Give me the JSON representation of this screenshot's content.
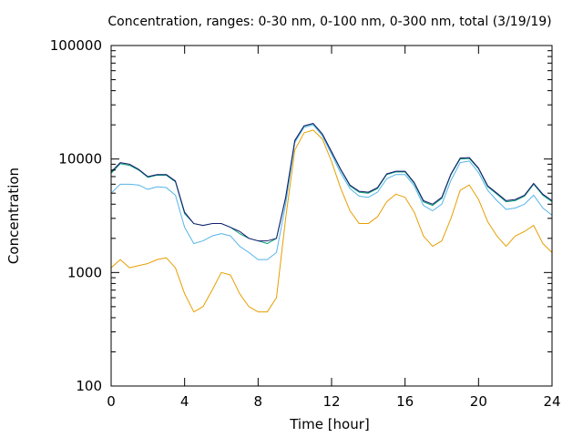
{
  "chart_data": {
    "type": "line",
    "title": "Concentration, ranges: 0-30 nm, 0-100 nm, 0-300 nm, total (3/19/19)",
    "xlabel": "Time [hour]",
    "ylabel": "Concentration",
    "xlim": [
      0,
      24
    ],
    "ylim": [
      100,
      100000
    ],
    "yscale": "log",
    "grid": false,
    "legend": "none",
    "x_ticks": [
      0,
      4,
      8,
      12,
      16,
      20,
      24
    ],
    "y_ticks": [
      100,
      1000,
      10000,
      100000
    ],
    "y_tick_labels": [
      "100",
      "1000",
      "10000",
      "100000"
    ],
    "x": [
      0,
      0.5,
      1,
      1.5,
      2,
      2.5,
      3,
      3.5,
      4,
      4.5,
      5,
      5.5,
      6,
      6.5,
      7,
      7.5,
      8,
      8.5,
      9,
      9.5,
      10,
      10.5,
      11,
      11.5,
      12,
      12.5,
      13,
      13.5,
      14,
      14.5,
      15,
      15.5,
      16,
      16.5,
      17,
      17.5,
      18,
      18.5,
      19,
      19.5,
      20,
      20.5,
      21,
      21.5,
      22,
      22.5,
      23,
      23.5,
      24
    ],
    "series": [
      {
        "color": "#e69f00",
        "values": [
          1100,
          1300,
          1100,
          1150,
          1200,
          1300,
          1350,
          1100,
          650,
          450,
          500,
          700,
          1000,
          950,
          650,
          500,
          450,
          450,
          600,
          3000,
          12000,
          17000,
          18000,
          15000,
          9500,
          5500,
          3500,
          2700,
          2700,
          3100,
          4200,
          4900,
          4600,
          3400,
          2100,
          1700,
          1900,
          3000,
          5300,
          5900,
          4400,
          2800,
          2100,
          1700,
          2100,
          2300,
          2600,
          1800,
          1500
        ]
      },
      {
        "color": "#56b4e9",
        "values": [
          5000,
          6000,
          6000,
          5900,
          5400,
          5700,
          5600,
          4800,
          2500,
          1800,
          1900,
          2100,
          2200,
          2100,
          1700,
          1500,
          1300,
          1300,
          1500,
          4000,
          14000,
          19000,
          20000,
          16000,
          11000,
          7500,
          5500,
          4700,
          4600,
          5100,
          6700,
          7300,
          7300,
          5800,
          3900,
          3500,
          4000,
          6500,
          9300,
          9600,
          7600,
          5300,
          4300,
          3600,
          3700,
          4000,
          4800,
          3700,
          3200
        ]
      },
      {
        "color": "#009e73",
        "values": [
          7500,
          9100,
          8800,
          8000,
          6900,
          7200,
          7200,
          6300,
          3300,
          2700,
          2600,
          2700,
          2700,
          2500,
          2200,
          2000,
          1900,
          1800,
          2000,
          4500,
          14500,
          19500,
          20500,
          16500,
          11500,
          8000,
          5800,
          5100,
          5000,
          5500,
          7300,
          7700,
          7700,
          6100,
          4200,
          3900,
          4500,
          7300,
          10000,
          10100,
          8200,
          5700,
          4900,
          4200,
          4300,
          4700,
          6000,
          4800,
          4200
        ]
      },
      {
        "color": "#191970",
        "values": [
          7700,
          9300,
          9000,
          8100,
          7000,
          7300,
          7300,
          6400,
          3400,
          2700,
          2600,
          2700,
          2700,
          2500,
          2300,
          2000,
          1900,
          1900,
          2000,
          4600,
          14600,
          19600,
          20600,
          16600,
          11600,
          8100,
          5900,
          5200,
          5100,
          5600,
          7400,
          7800,
          7800,
          6200,
          4300,
          4000,
          4600,
          7400,
          10200,
          10300,
          8300,
          5800,
          5000,
          4300,
          4400,
          4800,
          6100,
          4900,
          4300
        ]
      }
    ]
  }
}
